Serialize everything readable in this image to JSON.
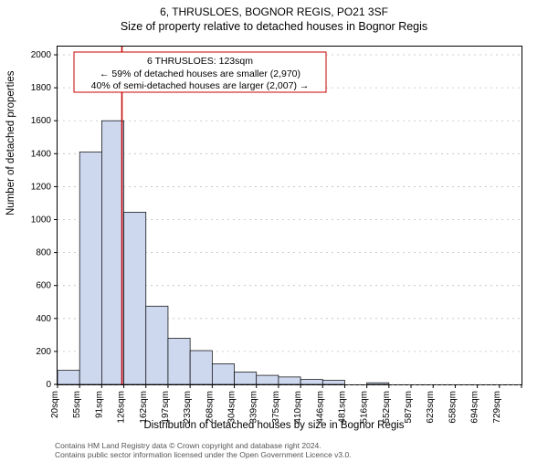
{
  "titles": {
    "super": "6, THRUSLOES, BOGNOR REGIS, PO21 3SF",
    "sub": "Size of property relative to detached houses in Bognor Regis"
  },
  "axes": {
    "ylabel": "Number of detached properties",
    "xlabel": "Distribution of detached houses by size in Bognor Regis",
    "ylim": [
      0,
      2050
    ],
    "ytick_step": 200,
    "ymax_label": 2000,
    "background_color": "#ffffff",
    "grid_color": "#bfbfbf",
    "bar_fill": "#cdd8ee",
    "bar_stroke": "#000000",
    "marker_color": "#c80000",
    "label_fontsize": 11.5,
    "tick_fontsize": 10
  },
  "histogram": {
    "type": "histogram",
    "categories": [
      "20sqm",
      "55sqm",
      "91sqm",
      "126sqm",
      "162sqm",
      "197sqm",
      "233sqm",
      "268sqm",
      "304sqm",
      "339sqm",
      "375sqm",
      "410sqm",
      "446sqm",
      "481sqm",
      "516sqm",
      "552sqm",
      "587sqm",
      "623sqm",
      "658sqm",
      "694sqm",
      "729sqm"
    ],
    "values": [
      85,
      1410,
      1600,
      1045,
      475,
      280,
      205,
      125,
      75,
      55,
      45,
      30,
      25,
      0,
      10,
      0,
      0,
      0,
      0,
      0,
      0
    ],
    "bar_width": 1.0
  },
  "marker": {
    "value_sqm": 123,
    "annotation": {
      "line1": "6 THRUSLOES: 123sqm",
      "line2": "← 59% of detached houses are smaller (2,970)",
      "line3": "40% of semi-detached houses are larger (2,007) →"
    }
  },
  "licence": {
    "line1": "Contains HM Land Registry data © Crown copyright and database right 2024.",
    "line2": "Contains public sector information licensed under the Open Government Licence v3.0."
  }
}
